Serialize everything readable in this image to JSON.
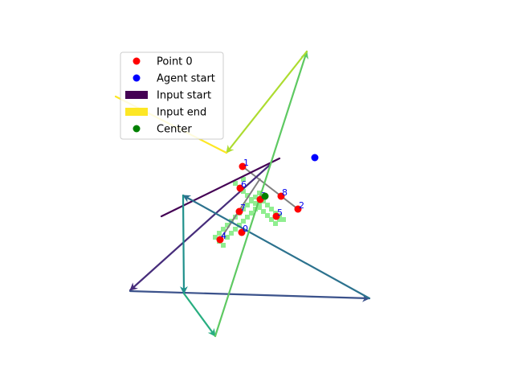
{
  "chart_data": {
    "type": "scatter",
    "title": "",
    "xlabel": "",
    "ylabel": "",
    "axes_visible": false,
    "xlim": [
      0,
      640
    ],
    "ylim": [
      480,
      0
    ],
    "legend": {
      "placement": "top-left",
      "entries": [
        {
          "label": "Point 0",
          "kind": "dot",
          "color": "#ff0000"
        },
        {
          "label": "Agent start",
          "kind": "dot",
          "color": "#0000ff"
        },
        {
          "label": "Input start",
          "kind": "patch",
          "color": "#440154"
        },
        {
          "label": "Input end",
          "kind": "patch",
          "color": "#fde725"
        },
        {
          "label": "Center",
          "kind": "dot",
          "color": "#008000"
        }
      ]
    },
    "points": [
      {
        "label": "0",
        "x": 301,
        "y": 289
      },
      {
        "label": "1",
        "x": 302,
        "y": 207
      },
      {
        "label": "2",
        "x": 371,
        "y": 260
      },
      {
        "label": "3",
        "x": 324,
        "y": 248
      },
      {
        "label": "4",
        "x": 274,
        "y": 298
      },
      {
        "label": "5",
        "x": 344,
        "y": 269
      },
      {
        "label": "6",
        "x": 299,
        "y": 234
      },
      {
        "label": "7",
        "x": 298,
        "y": 263
      },
      {
        "label": "8",
        "x": 350,
        "y": 244
      }
    ],
    "point_color": "#ff0000",
    "agent_start": {
      "x": 392,
      "y": 196,
      "color": "#0000ff"
    },
    "center": {
      "x": 330,
      "y": 244,
      "color": "#008000"
    },
    "polygon_outline": {
      "color": "#808080",
      "path": [
        [
          302,
          207
        ],
        [
          371,
          260
        ]
      ],
      "path2": [
        [
          324,
          222
        ],
        [
          274,
          298
        ]
      ]
    },
    "region_color": "#90ee90",
    "region_cells": [
      [
        265,
        292
      ],
      [
        270,
        287
      ],
      [
        275,
        282
      ],
      [
        280,
        277
      ],
      [
        285,
        272
      ],
      [
        290,
        267
      ],
      [
        295,
        262
      ],
      [
        300,
        257
      ],
      [
        305,
        252
      ],
      [
        310,
        247
      ],
      [
        315,
        242
      ],
      [
        320,
        237
      ],
      [
        290,
        225
      ],
      [
        295,
        230
      ],
      [
        300,
        235
      ],
      [
        305,
        240
      ],
      [
        310,
        245
      ],
      [
        315,
        250
      ],
      [
        320,
        255
      ],
      [
        325,
        260
      ],
      [
        330,
        265
      ],
      [
        335,
        270
      ],
      [
        340,
        275
      ],
      [
        345,
        270
      ],
      [
        270,
        297
      ],
      [
        275,
        302
      ],
      [
        280,
        292
      ],
      [
        285,
        287
      ],
      [
        290,
        282
      ],
      [
        295,
        277
      ],
      [
        300,
        272
      ],
      [
        305,
        267
      ],
      [
        310,
        262
      ],
      [
        315,
        257
      ],
      [
        320,
        252
      ],
      [
        325,
        247
      ],
      [
        330,
        252
      ],
      [
        335,
        257
      ],
      [
        340,
        262
      ],
      [
        345,
        265
      ],
      [
        350,
        270
      ],
      [
        300,
        220
      ]
    ],
    "trajectory": [
      {
        "from": [
          201,
          269
        ],
        "to": [
          348,
          197
        ],
        "color": "#440154",
        "arrow": false
      },
      {
        "from": [
          336,
          205
        ],
        "to": [
          162,
          361
        ],
        "color": "#472d7b",
        "arrow": true
      },
      {
        "from": [
          162,
          362
        ],
        "to": [
          460,
          371
        ],
        "color": "#3b528b",
        "arrow": true
      },
      {
        "from": [
          460,
          371
        ],
        "to": [
          228,
          243
        ],
        "color": "#2c728e",
        "arrow": true
      },
      {
        "from": [
          228,
          243
        ],
        "to": [
          229,
          365
        ],
        "color": "#21918c",
        "arrow": true
      },
      {
        "from": [
          229,
          365
        ],
        "to": [
          268,
          418
        ],
        "color": "#28ae80",
        "arrow": true
      },
      {
        "from": [
          268,
          418
        ],
        "to": [
          382,
          64
        ],
        "color": "#5ec962",
        "arrow": true
      },
      {
        "from": [
          382,
          64
        ],
        "to": [
          282,
          190
        ],
        "color": "#addc30",
        "arrow": true
      },
      {
        "from": [
          282,
          190
        ],
        "to": [
          144,
          120
        ],
        "color": "#fde725",
        "arrow": false
      }
    ]
  }
}
